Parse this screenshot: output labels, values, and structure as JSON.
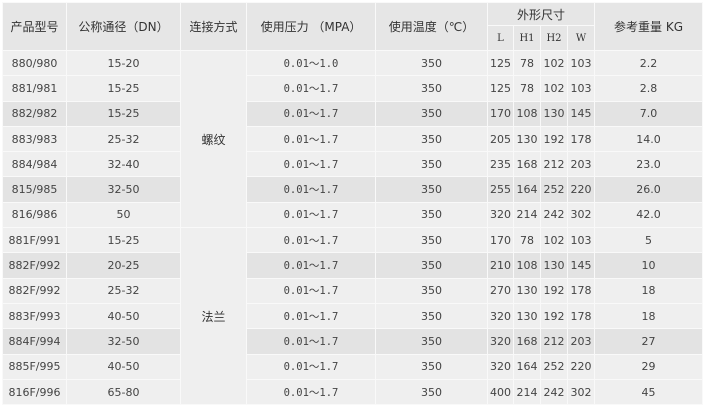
{
  "header": {
    "model": "产品型号",
    "dn": "公称通径（DN）",
    "connection": "连接方式",
    "pressure": "使用压力 （MPA）",
    "temperature": "使用温度（℃）",
    "dimensions": "外形尺寸",
    "weight": "参考重量 KG",
    "dim_cols": [
      "L",
      "H1",
      "H2",
      "W"
    ]
  },
  "groups": [
    {
      "label": "螺纹",
      "start": 0,
      "span": 7
    },
    {
      "label": "法兰",
      "start": 7,
      "span": 7
    }
  ],
  "rows": [
    {
      "model": "880/980",
      "dn": "15-20",
      "pressure": "0.01～1.0",
      "temp": "350",
      "L": "125",
      "H1": "78",
      "H2": "102",
      "W": "103",
      "weight": "2.2",
      "shade": "light"
    },
    {
      "model": "881/981",
      "dn": "15-25",
      "pressure": "0.01～1.7",
      "temp": "350",
      "L": "125",
      "H1": "78",
      "H2": "102",
      "W": "103",
      "weight": "2.8",
      "shade": "light"
    },
    {
      "model": "882/982",
      "dn": "15-25",
      "pressure": "0.01～1.7",
      "temp": "350",
      "L": "170",
      "H1": "108",
      "H2": "130",
      "W": "145",
      "weight": "7.0",
      "shade": "dark"
    },
    {
      "model": "883/983",
      "dn": "25-32",
      "pressure": "0.01～1.7",
      "temp": "350",
      "L": "205",
      "H1": "130",
      "H2": "192",
      "W": "178",
      "weight": "14.0",
      "shade": "light"
    },
    {
      "model": "884/984",
      "dn": "32-40",
      "pressure": "0.01～1.7",
      "temp": "350",
      "L": "235",
      "H1": "168",
      "H2": "212",
      "W": "203",
      "weight": "23.0",
      "shade": "light"
    },
    {
      "model": "815/985",
      "dn": "32-50",
      "pressure": "0.01～1.7",
      "temp": "350",
      "L": "255",
      "H1": "164",
      "H2": "252",
      "W": "220",
      "weight": "26.0",
      "shade": "dark"
    },
    {
      "model": "816/986",
      "dn": "50",
      "pressure": "0.01～1.7",
      "temp": "350",
      "L": "320",
      "H1": "214",
      "H2": "242",
      "W": "302",
      "weight": "42.0",
      "shade": "light"
    },
    {
      "model": "881F/991",
      "dn": "15-25",
      "pressure": "0.01～1.7",
      "temp": "350",
      "L": "170",
      "H1": "78",
      "H2": "102",
      "W": "103",
      "weight": "5",
      "shade": "light"
    },
    {
      "model": "882F/992",
      "dn": "20-25",
      "pressure": "0.01～1.7",
      "temp": "350",
      "L": "210",
      "H1": "108",
      "H2": "130",
      "W": "145",
      "weight": "10",
      "shade": "dark"
    },
    {
      "model": "882F/992",
      "dn": "25-32",
      "pressure": "0.01～1.7",
      "temp": "350",
      "L": "270",
      "H1": "130",
      "H2": "192",
      "W": "178",
      "weight": "18",
      "shade": "light"
    },
    {
      "model": "883F/993",
      "dn": "40-50",
      "pressure": "0.01～1.7",
      "temp": "350",
      "L": "320",
      "H1": "130",
      "H2": "192",
      "W": "178",
      "weight": "18",
      "shade": "light"
    },
    {
      "model": "884F/994",
      "dn": "32-50",
      "pressure": "0.01～1.7",
      "temp": "350",
      "L": "320",
      "H1": "168",
      "H2": "212",
      "W": "203",
      "weight": "27",
      "shade": "dark"
    },
    {
      "model": "885F/995",
      "dn": "40-50",
      "pressure": "0.01～1.7",
      "temp": "350",
      "L": "320",
      "H1": "164",
      "H2": "252",
      "W": "220",
      "weight": "29",
      "shade": "light"
    },
    {
      "model": "816F/996",
      "dn": "65-80",
      "pressure": "0.01～1.7",
      "temp": "350",
      "L": "400",
      "H1": "214",
      "H2": "242",
      "W": "302",
      "weight": "45",
      "shade": "light"
    }
  ]
}
